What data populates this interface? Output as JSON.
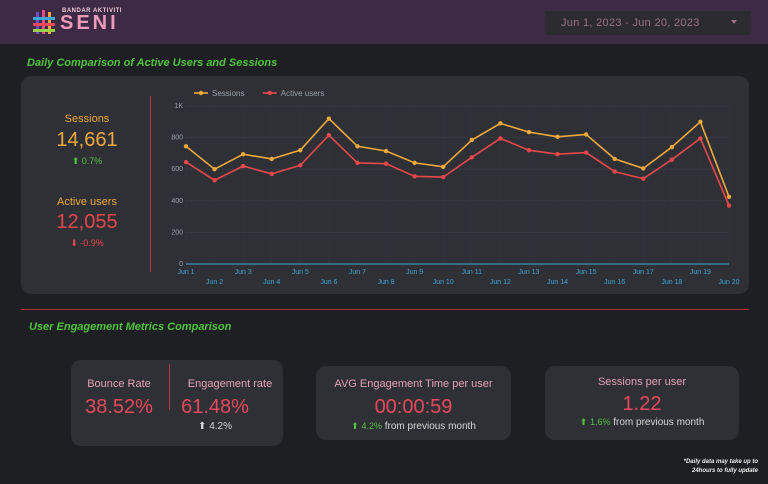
{
  "header": {
    "logo_small": "BANDAR AKTIVITI",
    "logo_big": "SENI",
    "date_range": "Jun 1, 2023 - Jun 20, 2023"
  },
  "colors": {
    "sessions": "#f0a83a",
    "active_users": "#e8474a",
    "accent_green": "#4fc43c",
    "header_bg": "#3d2a45"
  },
  "section1": {
    "title": "Daily Comparison of Active Users and Sessions",
    "sessions": {
      "label": "Sessions",
      "value": "14,661",
      "delta": "0.7%",
      "direction": "up"
    },
    "active_users": {
      "label": "Active users",
      "value": "12,055",
      "delta": "-0.9%",
      "direction": "down"
    }
  },
  "chart_data": {
    "type": "line",
    "legend_position": "top-left",
    "grid": true,
    "x": [
      "Jun 1",
      "Jun 2",
      "Jun 3",
      "Jun 4",
      "Jun 5",
      "Jun 6",
      "Jun 7",
      "Jun 8",
      "Jun 9",
      "Jun 10",
      "Jun 11",
      "Jun 12",
      "Jun 13",
      "Jun 14",
      "Jun 15",
      "Jun 16",
      "Jun 17",
      "Jun 18",
      "Jun 19",
      "Jun 20"
    ],
    "ylim": [
      0,
      1000
    ],
    "yticks": [
      "0",
      "200",
      "400",
      "600",
      "800",
      "1K"
    ],
    "series": [
      {
        "name": "Sessions",
        "color": "#f0a83a",
        "values": [
          745,
          600,
          695,
          665,
          720,
          920,
          745,
          715,
          640,
          615,
          785,
          890,
          835,
          805,
          820,
          665,
          605,
          740,
          900,
          425
        ]
      },
      {
        "name": "Active users",
        "color": "#e8474a",
        "values": [
          645,
          530,
          620,
          570,
          625,
          815,
          640,
          635,
          555,
          550,
          675,
          795,
          720,
          695,
          705,
          585,
          540,
          660,
          795,
          370
        ]
      }
    ]
  },
  "section2": {
    "title": "User Engagement Metrics Comparison",
    "bounce": {
      "label": "Bounce Rate",
      "value": "38.52%"
    },
    "engagement": {
      "label": "Engagement rate",
      "value": "61.48%",
      "delta": "4.2%"
    },
    "avg_time": {
      "label": "AVG Engagement Time per user",
      "value": "00:00:59",
      "delta": "4.2%",
      "suffix": "from previous month"
    },
    "sessions_per_user": {
      "label": "Sessions per user",
      "value": "1.22",
      "delta": "1.6%",
      "suffix": "from previous month"
    }
  },
  "footnote": {
    "line1": "*Daily data may take up to",
    "line2": "24hours to fully update"
  }
}
